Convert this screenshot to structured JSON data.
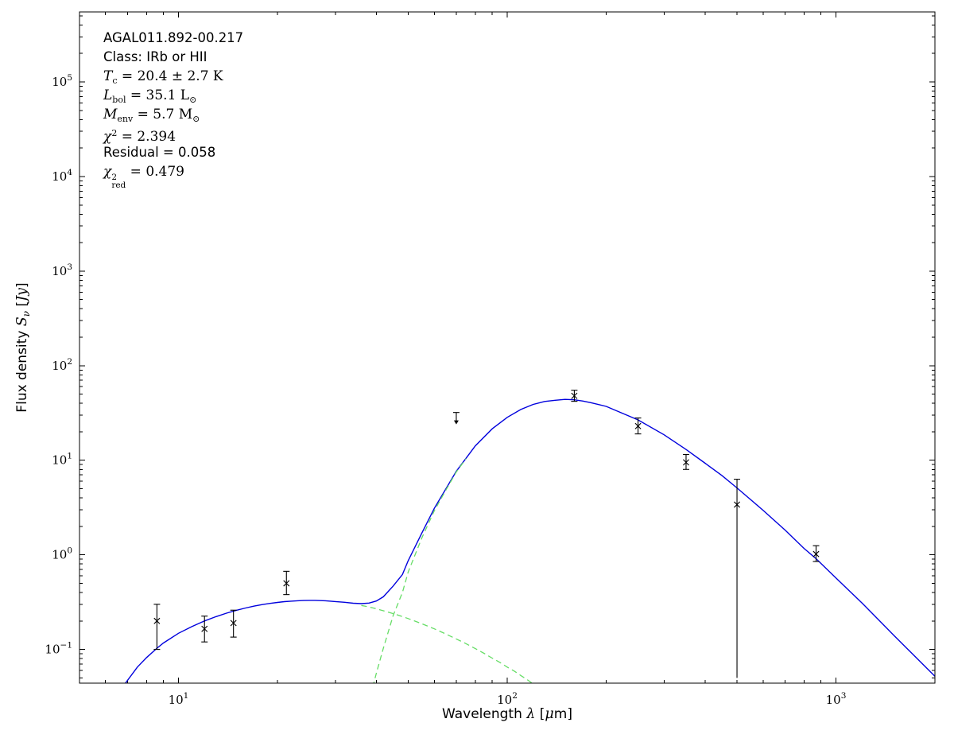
{
  "window": {
    "background": "#ffffff"
  },
  "annotation": {
    "lines": [
      {
        "name": "source-name",
        "parts": [
          {
            "s": "sans",
            "v": "AGAL011.892-00.217"
          }
        ]
      },
      {
        "name": "class-label",
        "parts": [
          {
            "s": "sans",
            "v": "Class: IRb or HII"
          }
        ]
      },
      {
        "name": "dust-temperature",
        "parts": [
          {
            "s": "var",
            "v": "T"
          },
          {
            "s": "sub",
            "v": "c"
          },
          {
            "s": "serif",
            "v": " = 20.4 ± 2.7 K"
          }
        ]
      },
      {
        "name": "bolometric-luminosity",
        "parts": [
          {
            "s": "var",
            "v": "L"
          },
          {
            "s": "sub",
            "v": "bol"
          },
          {
            "s": "serif",
            "v": " = 35.1 L"
          },
          {
            "s": "sub",
            "v": "⊙"
          }
        ]
      },
      {
        "name": "envelope-mass",
        "parts": [
          {
            "s": "var",
            "v": "M"
          },
          {
            "s": "sub",
            "v": "env"
          },
          {
            "s": "serif",
            "v": " = 5.7 M"
          },
          {
            "s": "sub",
            "v": "⊙"
          }
        ]
      },
      {
        "name": "chi-squared",
        "parts": [
          {
            "s": "var",
            "v": "χ"
          },
          {
            "s": "sup",
            "v": "2"
          },
          {
            "s": "serif",
            "v": " = 2.394"
          }
        ]
      },
      {
        "name": "residual",
        "parts": [
          {
            "s": "sans",
            "v": "Residual = 0.058"
          }
        ]
      },
      {
        "name": "reduced-chi-squared",
        "parts": [
          {
            "s": "var",
            "v": "χ"
          },
          {
            "s": "subsup",
            "sup": "2",
            "sub": "red"
          },
          {
            "s": "serif",
            "v": " = 0.479"
          }
        ]
      }
    ],
    "fit_values": {
      "source": "AGAL011.892-00.217",
      "class": "IRb or HII",
      "Tc_K": 20.4,
      "Tc_err_K": 2.7,
      "Lbol_Lsun": 35.1,
      "Menv_Msun": 5.7,
      "chi2": 2.394,
      "residual": 0.058,
      "chi2_red": 0.479
    }
  },
  "chart_data": {
    "type": "line+scatter",
    "title": "",
    "xlabel": "Wavelength λ [μm]",
    "ylabel": "Flux density Sν [Jy]",
    "xscale": "log",
    "yscale": "log",
    "xlim": [
      5,
      2000
    ],
    "ylim": [
      0.044,
      550000
    ],
    "grid": false,
    "xtick_exponents": [
      1,
      2,
      3
    ],
    "ytick_exponents": [
      -1,
      0,
      1,
      2,
      3,
      4,
      5
    ],
    "xlabel_parts": [
      {
        "s": "sans",
        "v": "Wavelength "
      },
      {
        "s": "var",
        "v": "λ"
      },
      {
        "s": "sans",
        "v": " ["
      },
      {
        "s": "var",
        "v": "μ"
      },
      {
        "s": "sans",
        "v": "m]"
      }
    ],
    "ylabel_parts": [
      {
        "s": "sans",
        "v": "Flux density "
      },
      {
        "s": "var",
        "v": "S"
      },
      {
        "s": "subvar",
        "v": "ν"
      },
      {
        "s": "sans",
        "v": " ["
      },
      {
        "s": "var",
        "v": "Jy"
      },
      {
        "s": "sans",
        "v": "]"
      }
    ],
    "colors": {
      "model": "#0000dd",
      "components": "#66dd66",
      "data": "#000000",
      "axes": "#000000"
    },
    "series": [
      {
        "name": "total-model-fit",
        "color": "#0000dd",
        "style": "solid",
        "points": [
          [
            6.7,
            0.036
          ],
          [
            6.9,
            0.044
          ],
          [
            7.5,
            0.065
          ],
          [
            8.0,
            0.082
          ],
          [
            8.6,
            0.103
          ],
          [
            9.0,
            0.117
          ],
          [
            10,
            0.148
          ],
          [
            11,
            0.175
          ],
          [
            12,
            0.2
          ],
          [
            13,
            0.222
          ],
          [
            14,
            0.242
          ],
          [
            15,
            0.259
          ],
          [
            16,
            0.274
          ],
          [
            17,
            0.287
          ],
          [
            18,
            0.298
          ],
          [
            19,
            0.307
          ],
          [
            20,
            0.314
          ],
          [
            21,
            0.32
          ],
          [
            22,
            0.324
          ],
          [
            23,
            0.327
          ],
          [
            24,
            0.329
          ],
          [
            25,
            0.33
          ],
          [
            26,
            0.33
          ],
          [
            28,
            0.327
          ],
          [
            30,
            0.321
          ],
          [
            32,
            0.315
          ],
          [
            34,
            0.308
          ],
          [
            36,
            0.305
          ],
          [
            38,
            0.309
          ],
          [
            40,
            0.325
          ],
          [
            42,
            0.36
          ],
          [
            45,
            0.469
          ],
          [
            48,
            0.62
          ],
          [
            50,
            0.87
          ],
          [
            55,
            1.7
          ],
          [
            60,
            3.1
          ],
          [
            65,
            4.95
          ],
          [
            70,
            7.63
          ],
          [
            80,
            14.2
          ],
          [
            90,
            21.5
          ],
          [
            100,
            28.4
          ],
          [
            110,
            34.4
          ],
          [
            120,
            39
          ],
          [
            130,
            41.9
          ],
          [
            140,
            43.1
          ],
          [
            150,
            44
          ],
          [
            160,
            43.6
          ],
          [
            170,
            42.3
          ],
          [
            180,
            40.6
          ],
          [
            200,
            37.1
          ],
          [
            250,
            26.7
          ],
          [
            300,
            18.6
          ],
          [
            350,
            13
          ],
          [
            400,
            9.3
          ],
          [
            450,
            6.9
          ],
          [
            500,
            5.1
          ],
          [
            600,
            2.96
          ],
          [
            700,
            1.83
          ],
          [
            800,
            1.17
          ],
          [
            870,
            0.91
          ],
          [
            1000,
            0.57
          ],
          [
            1200,
            0.31
          ],
          [
            1500,
            0.141
          ],
          [
            2000,
            0.052
          ]
        ]
      },
      {
        "name": "warm-component",
        "color": "#66dd66",
        "style": "dashed",
        "points": [
          [
            36,
            0.292
          ],
          [
            38,
            0.281
          ],
          [
            40,
            0.269
          ],
          [
            43,
            0.251
          ],
          [
            46,
            0.234
          ],
          [
            50,
            0.212
          ],
          [
            55,
            0.187
          ],
          [
            60,
            0.165
          ],
          [
            65,
            0.146
          ],
          [
            70,
            0.129
          ],
          [
            75,
            0.115
          ],
          [
            80,
            0.102
          ],
          [
            85,
            0.091
          ],
          [
            90,
            0.081
          ],
          [
            95,
            0.073
          ],
          [
            100,
            0.065
          ],
          [
            105,
            0.059
          ],
          [
            110,
            0.053
          ],
          [
            115,
            0.048
          ],
          [
            120,
            0.043
          ]
        ]
      },
      {
        "name": "cold-greybody-component",
        "color": "#66dd66",
        "style": "dashed",
        "points": [
          [
            39,
            0.04
          ],
          [
            40,
            0.056
          ],
          [
            42,
            0.103
          ],
          [
            45,
            0.229
          ],
          [
            48,
            0.4
          ],
          [
            50,
            0.66
          ],
          [
            55,
            1.51
          ],
          [
            60,
            2.93
          ],
          [
            65,
            4.8
          ],
          [
            70,
            7.5
          ],
          [
            75,
            10.4
          ]
        ]
      }
    ],
    "data_points": [
      {
        "x": 8.6,
        "y": 0.2,
        "ylo": 0.1,
        "yhi": 0.3,
        "cap_lo": true
      },
      {
        "x": 12.0,
        "y": 0.165,
        "ylo": 0.12,
        "yhi": 0.225,
        "cap_lo": true
      },
      {
        "x": 14.7,
        "y": 0.19,
        "ylo": 0.135,
        "yhi": 0.26,
        "cap_lo": true
      },
      {
        "x": 21.3,
        "y": 0.5,
        "ylo": 0.38,
        "yhi": 0.67,
        "cap_lo": true
      },
      {
        "x": 160,
        "y": 48,
        "ylo": 42,
        "yhi": 55,
        "cap_lo": true
      },
      {
        "x": 250,
        "y": 23,
        "ylo": 19,
        "yhi": 28,
        "cap_lo": true
      },
      {
        "x": 350,
        "y": 9.5,
        "ylo": 8.0,
        "yhi": 11.5,
        "cap_lo": true
      },
      {
        "x": 500,
        "y": 3.4,
        "ylo": 0.05,
        "yhi": 6.3,
        "cap_lo": false
      },
      {
        "x": 870,
        "y": 1.02,
        "ylo": 0.85,
        "yhi": 1.25,
        "cap_lo": true
      }
    ],
    "upper_limits": [
      {
        "x": 70,
        "y": 32
      }
    ],
    "marker": "x"
  }
}
